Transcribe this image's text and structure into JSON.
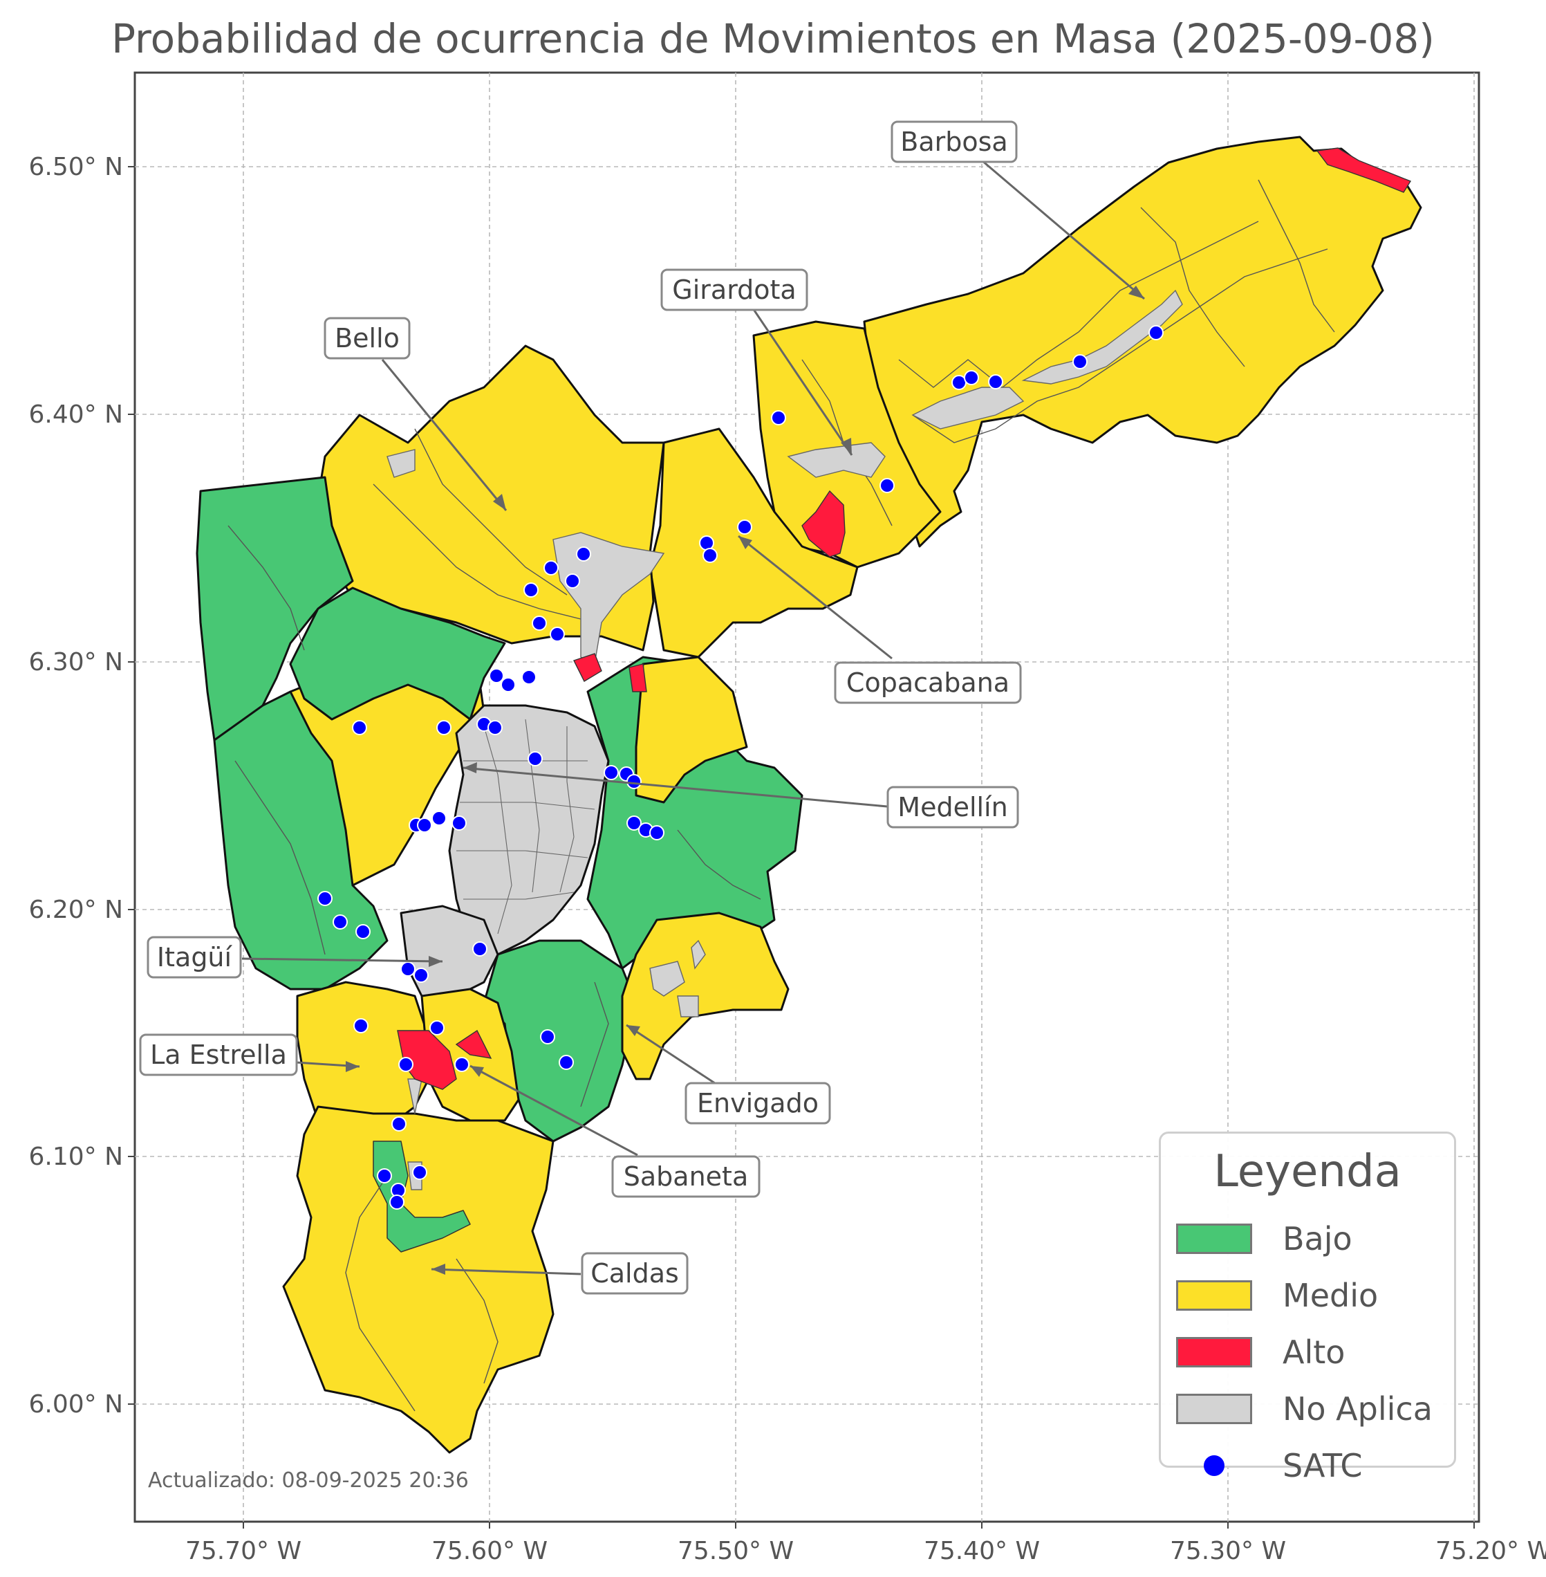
{
  "title": "Probabilidad de ocurrencia de Movimientos en Masa (2025-09-08)",
  "x_ticks": [
    "75.70° W",
    "75.60° W",
    "75.50° W",
    "75.40° W",
    "75.30° W",
    "75.20° W"
  ],
  "y_ticks": [
    "6.50° N",
    "6.40° N",
    "6.30° N",
    "6.20° N",
    "6.10° N",
    "6.00° N"
  ],
  "updated": "Actualizado: 08-09-2025 20:36",
  "colors": {
    "bajo": "#48c774",
    "medio": "#fce028",
    "alto": "#ff1a3d",
    "no_aplica": "#d3d3d3",
    "satc": "#0000ff"
  },
  "municipalities": {
    "barbosa": "Barbosa",
    "girardota": "Girardota",
    "bello": "Bello",
    "copacabana": "Copacabana",
    "medellin": "Medellín",
    "itagui": "Itagüí",
    "la_estrella": "La Estrella",
    "envigado": "Envigado",
    "sabaneta": "Sabaneta",
    "caldas": "Caldas"
  },
  "legend": {
    "title": "Leyenda",
    "items": [
      "Bajo",
      "Medio",
      "Alto",
      "No Aplica",
      "SATC"
    ]
  }
}
